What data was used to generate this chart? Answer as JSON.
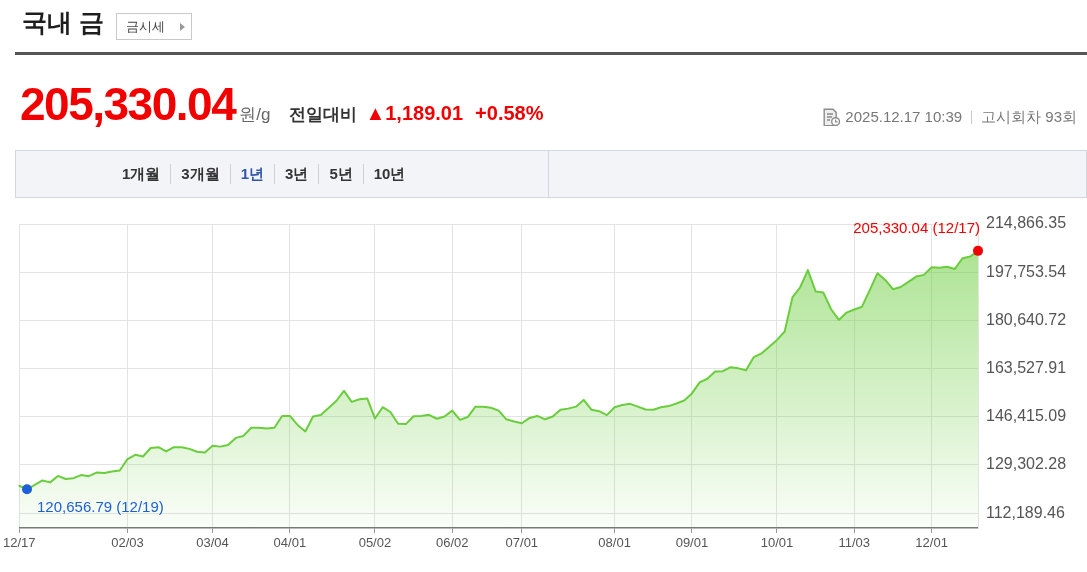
{
  "chart_data": {
    "type": "area",
    "title": "국내 금",
    "annotations": [
      "금시세",
      "205,330.04",
      "원/g",
      "전일대비",
      "▲1,189.01",
      "+0.58%",
      "2025.12.17 10:39",
      "고시회차 93회",
      "1개월",
      "3개월",
      "1년",
      "3년",
      "5년",
      "10년"
    ],
    "categories": [
      "12/17",
      null,
      null,
      null,
      null,
      null,
      null,
      null,
      null,
      null,
      null,
      null,
      null,
      null,
      "02/03",
      null,
      null,
      null,
      null,
      null,
      null,
      null,
      null,
      null,
      null,
      "03/04",
      null,
      null,
      null,
      null,
      null,
      null,
      null,
      null,
      null,
      "04/01",
      null,
      null,
      null,
      null,
      null,
      null,
      null,
      null,
      null,
      null,
      "05/02",
      null,
      null,
      null,
      null,
      null,
      null,
      null,
      null,
      null,
      "06/02",
      null,
      null,
      null,
      null,
      null,
      null,
      null,
      null,
      "07/01",
      null,
      null,
      null,
      null,
      null,
      null,
      null,
      null,
      null,
      null,
      null,
      "08/01",
      null,
      null,
      null,
      null,
      null,
      null,
      null,
      null,
      null,
      "09/01",
      null,
      null,
      null,
      null,
      null,
      null,
      null,
      null,
      null,
      null,
      "10/01",
      null,
      null,
      null,
      null,
      null,
      null,
      null,
      null,
      null,
      "11/03",
      null,
      null,
      null,
      null,
      null,
      null,
      null,
      null,
      null,
      "12/01",
      null,
      null,
      null,
      null,
      null,
      null
    ],
    "values": [
      121900,
      120656.79,
      122200,
      123800,
      123100,
      125400,
      124300,
      124600,
      125700,
      125300,
      126600,
      126400,
      127000,
      127300,
      131400,
      132900,
      132300,
      135300,
      135600,
      134100,
      135600,
      135600,
      135000,
      134000,
      133700,
      136100,
      135800,
      136400,
      138900,
      139600,
      142500,
      142500,
      142200,
      142500,
      146700,
      146700,
      143500,
      141200,
      146500,
      147000,
      149500,
      152000,
      155600,
      151700,
      152600,
      152900,
      145800,
      149800,
      148100,
      143900,
      143800,
      146600,
      146700,
      147100,
      145700,
      146500,
      148600,
      145300,
      146300,
      150000,
      150000,
      149600,
      148600,
      145500,
      144700,
      144100,
      146000,
      146700,
      145500,
      146500,
      148900,
      149300,
      150000,
      152400,
      148900,
      148400,
      147000,
      149800,
      150600,
      151000,
      150000,
      149000,
      148900,
      149800,
      150200,
      151100,
      152200,
      154700,
      158600,
      159900,
      162500,
      162600,
      164000,
      163600,
      162900,
      167600,
      168900,
      171300,
      173700,
      176700,
      188800,
      192400,
      198500,
      190900,
      190500,
      184600,
      180800,
      183400,
      184500,
      185500,
      191400,
      197400,
      195000,
      191700,
      192500,
      194300,
      196200,
      196800,
      199500,
      199300,
      199700,
      198900,
      202700,
      203300,
      205330.04
    ],
    "value_labels": [
      null,
      "120,656.79 (12/19)",
      null,
      null,
      null,
      null,
      null,
      null,
      null,
      null,
      null,
      null,
      null,
      null,
      null,
      null,
      null,
      null,
      null,
      null,
      null,
      null,
      null,
      null,
      null,
      null,
      null,
      null,
      null,
      null,
      null,
      null,
      null,
      null,
      null,
      null,
      null,
      null,
      null,
      null,
      null,
      null,
      null,
      null,
      null,
      null,
      null,
      null,
      null,
      null,
      null,
      null,
      null,
      null,
      null,
      null,
      null,
      null,
      null,
      null,
      null,
      null,
      null,
      null,
      null,
      null,
      null,
      null,
      null,
      null,
      null,
      null,
      null,
      null,
      null,
      null,
      null,
      null,
      null,
      null,
      null,
      null,
      null,
      null,
      null,
      null,
      null,
      null,
      null,
      null,
      null,
      null,
      null,
      null,
      null,
      null,
      null,
      null,
      null,
      null,
      null,
      null,
      null,
      null,
      null,
      null,
      null,
      null,
      null,
      null,
      null,
      null,
      null,
      null,
      null,
      null,
      null,
      null,
      null,
      null,
      null,
      null,
      null,
      null,
      "205,330.04 (12/17)"
    ],
    "color": "#6acd3c",
    "ylim": [
      106900,
      214866.35
    ],
    "yticks": [
      {
        "value": 112189.46,
        "label": "112,189.46"
      },
      {
        "value": 129302.28,
        "label": "129,302.28"
      },
      {
        "value": 146415.09,
        "label": "146,415.09"
      },
      {
        "value": 163527.91,
        "label": "163,527.91"
      },
      {
        "value": 180640.72,
        "label": "180,640.72"
      },
      {
        "value": 197753.54,
        "label": "197,753.54"
      },
      {
        "value": 214866.35,
        "label": "214,866.35"
      }
    ],
    "grid": true
  }
}
